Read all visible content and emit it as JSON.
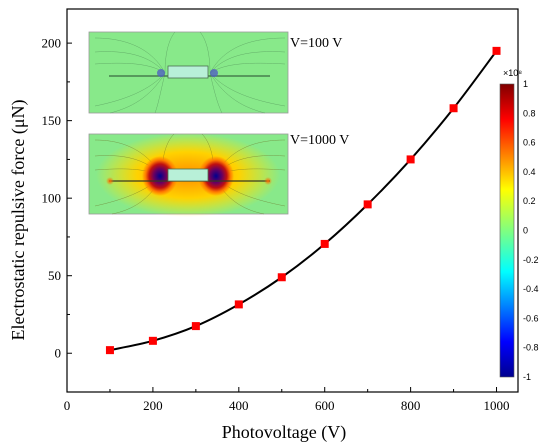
{
  "chart_data": {
    "type": "line",
    "xlabel": "Photovoltage (V)",
    "ylabel": "Electrostatic repulsive force (μN)",
    "xlim": [
      0,
      1050
    ],
    "ylim": [
      -25,
      222
    ],
    "xticks": [
      "0",
      "200",
      "400",
      "600",
      "800",
      "1000"
    ],
    "yticks": [
      "0",
      "50",
      "100",
      "150",
      "200"
    ],
    "x": [
      100,
      200,
      300,
      400,
      500,
      600,
      700,
      800,
      900,
      1000
    ],
    "series": [
      {
        "values": [
          2,
          8,
          17.5,
          31.5,
          49,
          70.5,
          96,
          125,
          158,
          195
        ],
        "color": "#000000",
        "marker": "square",
        "marker_color": "#ff0000"
      }
    ],
    "grid": false,
    "legend": "none",
    "insets": [
      {
        "label": "V=100 V"
      },
      {
        "label": "V=1000 V"
      }
    ],
    "colorbar": {
      "exponent": "×10⁸",
      "tick_labels": [
        "1",
        "0.8",
        "0.6",
        "0.4",
        "0.2",
        "0",
        "-0.2",
        "-0.4",
        "-0.6",
        "-0.8",
        "-1"
      ],
      "range": [
        -1,
        1
      ],
      "colormap": "jet"
    }
  }
}
